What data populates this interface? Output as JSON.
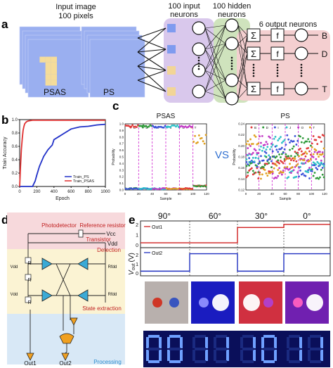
{
  "panel_labels": [
    "a",
    "b",
    "c",
    "d",
    "e"
  ],
  "panel_a": {
    "input_title_1": "Input image",
    "input_title_2": "100 pixels",
    "img_labels": [
      "PSAS",
      "PS"
    ],
    "input_neurons_1": "100 input",
    "input_neurons_2": "neurons",
    "hidden_neurons_1": "100 hidden",
    "hidden_neurons_2": "neurons",
    "output_neurons": "6 output neurons",
    "sum_symbol": "Σ",
    "f_symbol": "f",
    "outputs": [
      "B",
      "D",
      "T"
    ],
    "colors": {
      "pixel_bg": "#9aaff0",
      "pixel_letter": "#f5dc9a",
      "input_layer": "#d9c8ec",
      "hidden_layer": "#cfe3bd",
      "output_layer": "#f4cfd0"
    }
  },
  "panel_c": {
    "titles": [
      "PSAS",
      "PS"
    ],
    "vs": "VS",
    "legend_letters": [
      "B",
      "D",
      "I",
      "J",
      "O",
      "T"
    ],
    "legend_colors": [
      "#e03a3a",
      "#2f9a3a",
      "#3c52d8",
      "#2fc0c8",
      "#c23ac6",
      "#e0a020"
    ]
  },
  "panel_d": {
    "photodetector": "Photodetector",
    "reference_resistor": "Reference resistor",
    "vcc": "Vcc",
    "transistor": "Transistor",
    "vdd": "Vdd",
    "detection": "Detection",
    "state_extraction": "State extraction",
    "processing": "Processing",
    "vdd_left": "Vdd",
    "rfdd": "Rfdd",
    "r1": "R",
    "r2": "R",
    "r3": "R",
    "out1": "Out1",
    "out2": "Out2"
  },
  "panel_e": {
    "angles": [
      "90°",
      "60°",
      "30°",
      "0°"
    ],
    "ylabel": "V",
    "ylabel_sub": "out",
    "ylabel_unit": "(V)",
    "out1": "Out1",
    "out2": "Out2",
    "upper_ticks": [
      "2",
      "1",
      "0"
    ],
    "lower_ticks": [
      "2",
      "1",
      "0"
    ],
    "digits": [
      "0",
      "0",
      "1",
      "1",
      "1",
      "0",
      "1",
      "1"
    ],
    "out1_color": "#d02020",
    "out2_color": "#2030c0"
  },
  "chart_data": [
    {
      "type": "line",
      "panel": "b",
      "xlabel": "Epoch",
      "ylabel": "Train Accuracy",
      "xlim": [
        0,
        1000
      ],
      "ylim": [
        0,
        1.0
      ],
      "xticks": [
        "0",
        "200",
        "400",
        "600",
        "800",
        "1000"
      ],
      "yticks": [
        "0.0",
        "0.2",
        "0.4",
        "0.6",
        "0.8",
        "1.0"
      ],
      "legend": "bottom-right",
      "series": [
        {
          "name": "Train_PS",
          "color": "#2030c8",
          "x": [
            0,
            150,
            180,
            200,
            230,
            280,
            330,
            380,
            400,
            450,
            500,
            600,
            700,
            800,
            900,
            1000
          ],
          "y": [
            0.0,
            0.0,
            0.08,
            0.17,
            0.3,
            0.45,
            0.55,
            0.62,
            0.7,
            0.74,
            0.78,
            0.86,
            0.89,
            0.9,
            0.92,
            0.93
          ]
        },
        {
          "name": "Train_PSAS",
          "color": "#e03030",
          "x": [
            0,
            10,
            20,
            30,
            40,
            50,
            60,
            80,
            100,
            150,
            200,
            400,
            600,
            800,
            1000
          ],
          "y": [
            0.0,
            0.3,
            0.55,
            0.72,
            0.84,
            0.9,
            0.94,
            0.97,
            0.98,
            0.99,
            0.99,
            0.99,
            0.99,
            0.99,
            0.99
          ]
        }
      ]
    },
    {
      "type": "scatter",
      "panel": "c-PSAS",
      "title": "PSAS",
      "xlabel": "Sample",
      "ylabel": "Probability",
      "xlim": [
        0,
        120
      ],
      "ylim": [
        0,
        1.0
      ],
      "xticks": [
        "0",
        "20",
        "40",
        "60",
        "80",
        "100",
        "120"
      ],
      "yticks": [
        "0.0",
        "0.1",
        "0.2",
        "0.3",
        "0.4",
        "0.5",
        "0.6",
        "0.7",
        "0.8",
        "0.9",
        "1.0"
      ],
      "dividers": [
        20,
        40,
        60,
        80,
        100
      ],
      "series_high": [
        0.98,
        0.98,
        0.97,
        0.98,
        0.97,
        0.85
      ],
      "series_low": [
        0.01,
        0.01,
        0.01,
        0.01,
        0.01,
        0.05
      ]
    },
    {
      "type": "scatter",
      "panel": "c-PS",
      "title": "PS",
      "xlabel": "Sample",
      "ylabel": "Probability",
      "xlim": [
        0,
        120
      ],
      "ylim": [
        0.12,
        0.24
      ],
      "xticks": [
        "0",
        "20",
        "40",
        "60",
        "80",
        "100",
        "120"
      ],
      "yticks": [
        "0.12",
        "0.14",
        "0.16",
        "0.18",
        "0.20",
        "0.22",
        "0.24"
      ],
      "dividers": [
        20,
        40,
        60,
        80,
        100
      ],
      "series_levels": [
        0.15,
        0.16,
        0.17,
        0.18,
        0.19,
        0.21
      ]
    }
  ]
}
